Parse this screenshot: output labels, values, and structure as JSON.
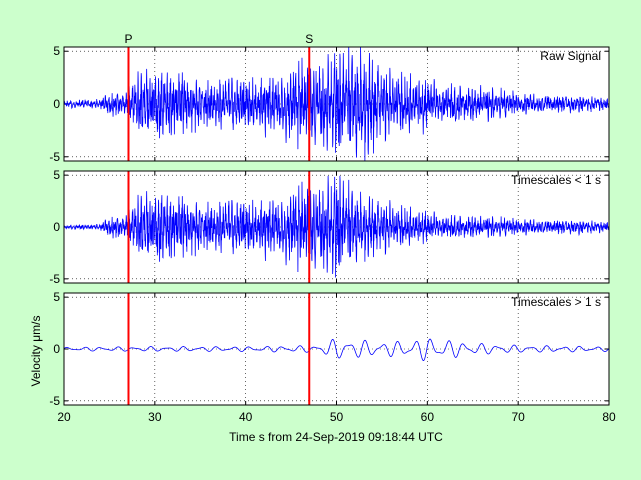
{
  "figure": {
    "background": "#ccffcc",
    "xlabel": "Time s from 24-Sep-2019 09:18:44 UTC",
    "ylabel": "Velocity μm/s"
  },
  "chart_data": {
    "type": "line",
    "shared_x": true,
    "xlim": [
      20,
      80
    ],
    "xticks": [
      20,
      30,
      40,
      50,
      60,
      70,
      80
    ],
    "grid": "dotted",
    "line_color": "#0000ff",
    "phase_color": "#ff0000",
    "phases": [
      {
        "label": "P",
        "x": 27.1
      },
      {
        "label": "S",
        "x": 47.0
      }
    ],
    "panels": [
      {
        "label": "Raw Signal",
        "ylim": [
          -5.4,
          5.4
        ],
        "yticks": [
          -5,
          0,
          5
        ],
        "envelope": {
          "x": [
            20,
            24,
            25,
            27,
            28,
            30,
            32,
            35,
            40,
            44,
            46,
            47,
            48,
            50,
            53,
            55,
            58,
            60,
            62,
            65,
            68,
            70,
            75,
            80
          ],
          "amp": [
            0.3,
            0.4,
            1.0,
            1.2,
            2.4,
            3.4,
            2.8,
            2.0,
            2.2,
            2.6,
            4.0,
            3.6,
            3.2,
            4.6,
            4.6,
            3.0,
            2.4,
            2.2,
            1.6,
            1.4,
            1.2,
            0.9,
            0.7,
            0.6
          ]
        },
        "low_freq": {
          "x": [
            20,
            30,
            40,
            48,
            50,
            55,
            58,
            60,
            62,
            65,
            70,
            80
          ],
          "amp": [
            0.15,
            0.2,
            0.2,
            0.3,
            0.9,
            0.6,
            0.7,
            1.0,
            0.8,
            0.5,
            0.3,
            0.2
          ]
        }
      },
      {
        "label": "Timescales < 1 s",
        "ylim": [
          -5.4,
          5.4
        ],
        "yticks": [
          -5,
          0,
          5
        ],
        "envelope": {
          "x": [
            20,
            24,
            25,
            27,
            28,
            30,
            32,
            35,
            40,
            44,
            46,
            47,
            48,
            50,
            53,
            55,
            58,
            60,
            62,
            65,
            68,
            70,
            75,
            80
          ],
          "amp": [
            0.15,
            0.25,
            0.9,
            1.2,
            2.4,
            3.6,
            2.8,
            2.1,
            2.3,
            2.6,
            4.0,
            3.8,
            3.2,
            4.8,
            2.6,
            2.2,
            1.6,
            1.4,
            1.0,
            0.9,
            0.8,
            0.7,
            0.6,
            0.5
          ]
        }
      },
      {
        "label": "Timescales > 1 s",
        "ylim": [
          -5.4,
          5.4
        ],
        "yticks": [
          -5,
          0,
          5
        ],
        "low_freq": {
          "x": [
            20,
            30,
            40,
            48,
            50,
            55,
            58,
            60,
            62,
            65,
            70,
            80
          ],
          "amp": [
            0.15,
            0.2,
            0.2,
            0.3,
            0.9,
            0.6,
            0.7,
            1.0,
            0.8,
            0.5,
            0.3,
            0.2
          ]
        }
      }
    ]
  }
}
